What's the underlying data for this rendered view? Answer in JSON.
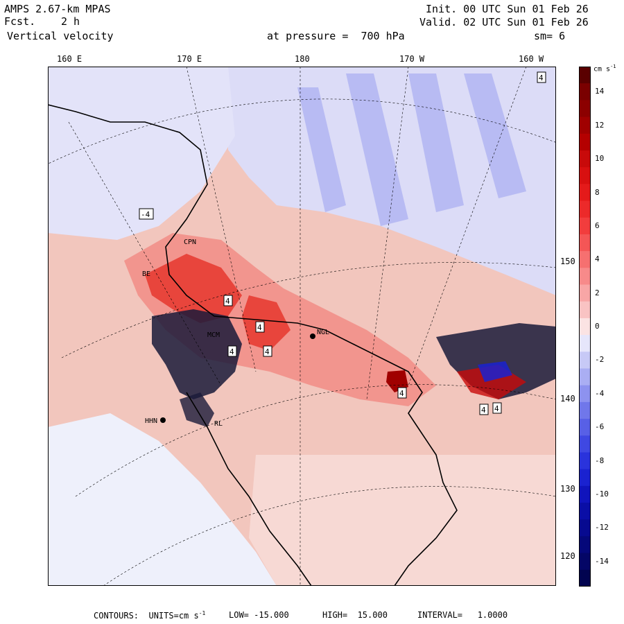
{
  "header": {
    "model": "AMPS 2.67-km MPAS",
    "fcst_label": "Fcst.",
    "fcst_value": "2 h",
    "field": "Vertical velocity",
    "init": "Init. 00 UTC Sun 01 Feb 26",
    "valid": "Valid. 02 UTC Sun 01 Feb 26",
    "pressure": "at pressure =  700 hPa",
    "smoothing": "sm= 6"
  },
  "map": {
    "lon_labels": [
      "160 E",
      "170 E",
      "180",
      "170 W",
      "160 W"
    ],
    "lat_labels": [
      "150 W",
      "140 W",
      "130 W",
      "120 W"
    ],
    "stations": [
      "MCM",
      "NGL",
      "HHN",
      "CPN",
      "BE",
      "RL"
    ],
    "boxed_labels": [
      "4",
      "4",
      "4",
      "4",
      "4",
      "4",
      "4",
      "-4",
      "4"
    ],
    "colors": {
      "positive": "#e8453c",
      "negative": "#3848d0",
      "land": "#ffffff",
      "background": "#f2c6bd"
    }
  },
  "colorbar": {
    "units": "cm s",
    "units_exp": "-1",
    "ticks": [
      "14",
      "12",
      "10",
      "8",
      "6",
      "4",
      "2",
      "0",
      "-2",
      "-4",
      "-6",
      "-8",
      "-10",
      "-12",
      "-14"
    ],
    "levels": [
      15,
      14,
      13,
      12,
      11,
      10,
      9,
      8,
      7,
      6,
      5,
      4,
      3,
      2,
      1,
      0,
      -1,
      -2,
      -3,
      -4,
      -5,
      -6,
      -7,
      -8,
      -9,
      -10,
      -11,
      -12,
      -13,
      -14,
      -15
    ],
    "colors": [
      "#5a0000",
      "#7a0000",
      "#8c0000",
      "#a00000",
      "#b40000",
      "#c80a0a",
      "#d81010",
      "#e41a1a",
      "#ec2a2a",
      "#f23d3d",
      "#f45656",
      "#f67070",
      "#f78a8a",
      "#f8a6a6",
      "#f9c3c3",
      "#fbe3e3",
      "#e6e6fb",
      "#c7c9f6",
      "#aaaef3",
      "#8d92ef",
      "#7077ea",
      "#5860e6",
      "#3f48e2",
      "#2a33dc",
      "#1a22d0",
      "#1014bc",
      "#0a0ea6",
      "#070a90",
      "#05087a",
      "#040666",
      "#020450"
    ]
  },
  "footer": {
    "contours": "CONTOURS:  UNITS=cm s",
    "units_exp": "-1",
    "low": "LOW= -15.000",
    "high": "HIGH=  15.000",
    "interval": "INTERVAL=   1.0000"
  }
}
